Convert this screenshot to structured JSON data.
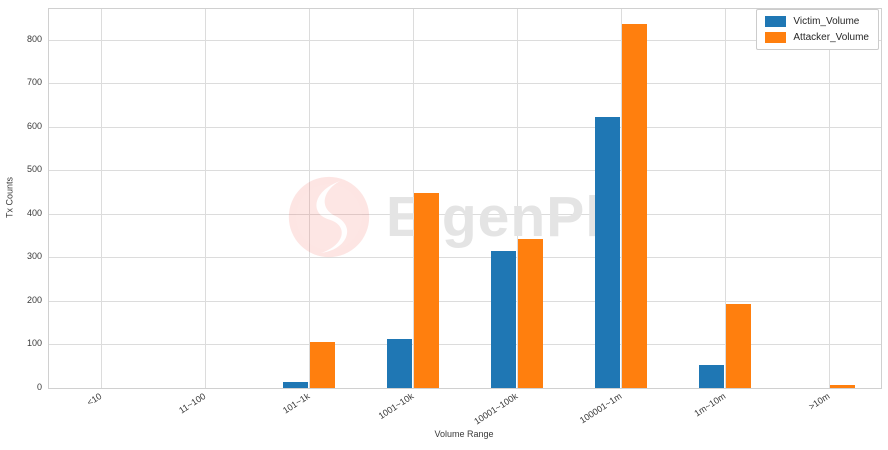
{
  "figure": {
    "watermark": {
      "text": "EigenPhi",
      "logo": "eigenphi-flame-logo"
    }
  },
  "chart_data": {
    "type": "bar",
    "title": "",
    "xlabel": "Volume Range",
    "ylabel": "Tx Counts",
    "categories": [
      "<10",
      "11~100",
      "101~1k",
      "1001~10k",
      "10001~100k",
      "100001~1m",
      "1m~10m",
      ">10m"
    ],
    "series": [
      {
        "name": "Victim_Volume",
        "color": "#1f77b4",
        "values": [
          0,
          0,
          15,
          112,
          314,
          623,
          52,
          0
        ]
      },
      {
        "name": "Attacker_Volume",
        "color": "#ff7f0e",
        "values": [
          0,
          0,
          106,
          448,
          343,
          835,
          192,
          8
        ]
      }
    ],
    "ylim": [
      0,
      870
    ],
    "yticks": [
      0,
      100,
      200,
      300,
      400,
      500,
      600,
      700,
      800
    ],
    "grid": true,
    "legend_position": "upper right",
    "grid_color": "#dcdcdc",
    "text_color": "#3a3a3a",
    "watermark_color": "#ef4136"
  }
}
